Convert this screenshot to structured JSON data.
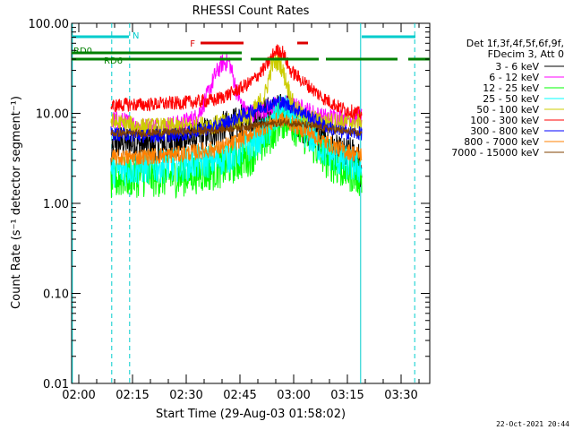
{
  "chart_data": {
    "type": "line",
    "title": "RHESSI Count Rates",
    "xlabel": "Start Time (29-Aug-03 01:58:02)",
    "ylabel": "Count Rate (s⁻¹ detector segment⁻¹)",
    "yscale": "log",
    "ylim": [
      0.01,
      100
    ],
    "xlim_minutes": [
      0,
      100
    ],
    "x_ticks": [
      {
        "t": 2,
        "label": "02:00"
      },
      {
        "t": 17,
        "label": "02:15"
      },
      {
        "t": 32,
        "label": "02:30"
      },
      {
        "t": 47,
        "label": "02:45"
      },
      {
        "t": 62,
        "label": "03:00"
      },
      {
        "t": 77,
        "label": "03:15"
      },
      {
        "t": 92,
        "label": "03:30"
      }
    ],
    "y_ticks": [
      {
        "v": 0.01,
        "label": "0.01"
      },
      {
        "v": 0.1,
        "label": "0.10"
      },
      {
        "v": 1,
        "label": "1.00"
      },
      {
        "v": 10,
        "label": "10.00"
      },
      {
        "v": 100,
        "label": "100.00"
      }
    ],
    "legend": {
      "position": "right",
      "header": [
        "Det 1f,3f,4f,5f,6f,9f,",
        "FDecim 3, Att 0"
      ]
    },
    "series": [
      {
        "name": "3 - 6 keV",
        "color": "#000000",
        "x": [
          11,
          12,
          15,
          20,
          30,
          35,
          40,
          45,
          50,
          55,
          60,
          65,
          70,
          75,
          80,
          81
        ],
        "values": [
          2.8,
          4.8,
          4.8,
          4.5,
          4.8,
          5.5,
          6.5,
          7.2,
          9,
          10,
          11,
          7,
          4.8,
          3.5,
          3.5,
          1.5
        ]
      },
      {
        "name": "6 - 12 keV",
        "color": "#ff00ff",
        "x": [
          11,
          15,
          20,
          30,
          35,
          38,
          40,
          42,
          44,
          46,
          48,
          50,
          55,
          60,
          65,
          70,
          75,
          80,
          81
        ],
        "values": [
          8.5,
          8,
          7,
          7.5,
          9,
          16,
          26,
          36,
          38,
          18,
          11,
          10,
          11.5,
          12.5,
          11,
          9,
          9,
          9,
          9
        ]
      },
      {
        "name": "12 - 25 keV",
        "color": "#00ff00",
        "x": [
          11,
          15,
          20,
          30,
          40,
          45,
          50,
          55,
          58,
          60,
          65,
          70,
          75,
          80,
          81
        ],
        "values": [
          1.8,
          2,
          2,
          2,
          2.4,
          2.8,
          3.5,
          5.5,
          8.5,
          9,
          6,
          3.5,
          2.5,
          2.1,
          1.9
        ]
      },
      {
        "name": "25 - 50 keV",
        "color": "#00ffff",
        "x": [
          11,
          15,
          20,
          30,
          40,
          45,
          50,
          55,
          58,
          60,
          65,
          70,
          75,
          80,
          81
        ],
        "values": [
          2.3,
          2.4,
          2.5,
          2.7,
          3,
          3.5,
          4.5,
          6.5,
          10,
          10.5,
          6.5,
          4,
          3,
          2.5,
          2.5
        ]
      },
      {
        "name": "50 - 100 keV",
        "color": "#cccc00",
        "x": [
          11,
          15,
          20,
          30,
          40,
          45,
          50,
          54,
          56,
          58,
          60,
          62,
          65,
          70,
          75,
          80,
          81
        ],
        "values": [
          8,
          7.5,
          7,
          7,
          7.5,
          8,
          9.5,
          16,
          35,
          38,
          22,
          12,
          9,
          8,
          8,
          8,
          8
        ]
      },
      {
        "name": "100 - 300 keV",
        "color": "#ff0000",
        "x": [
          11,
          15,
          20,
          30,
          40,
          45,
          50,
          54,
          57,
          59,
          61,
          65,
          70,
          75,
          80,
          81
        ],
        "values": [
          12,
          12.5,
          12.5,
          13,
          14,
          17,
          22,
          32,
          50,
          48,
          30,
          22,
          15,
          11.5,
          10,
          10
        ]
      },
      {
        "name": "300 - 800 keV",
        "color": "#0000ff",
        "x": [
          11,
          15,
          20,
          30,
          40,
          45,
          50,
          55,
          58,
          60,
          65,
          70,
          75,
          80,
          81
        ],
        "values": [
          6,
          5.8,
          5.6,
          5.8,
          7,
          8.5,
          10.5,
          12.5,
          13.5,
          12.5,
          10,
          7.5,
          6.2,
          6,
          6
        ]
      },
      {
        "name": "800 - 7000 keV",
        "color": "#ff8000",
        "x": [
          11,
          15,
          20,
          30,
          40,
          45,
          50,
          55,
          58,
          60,
          65,
          70,
          75,
          80,
          81
        ],
        "values": [
          3.2,
          3.2,
          3.3,
          3.5,
          4,
          4.6,
          6,
          7.5,
          8.5,
          8.2,
          6.5,
          5,
          4,
          3.5,
          3.5
        ]
      },
      {
        "name": "7000 - 15000 keV",
        "color": "#804000",
        "x": [
          11,
          20,
          40,
          60,
          80,
          81
        ],
        "values": [
          6,
          6,
          6.5,
          8,
          6,
          6
        ]
      }
    ],
    "annotations": [
      {
        "label": "N",
        "color": "#00cccc",
        "bars": [
          [
            0,
            16
          ],
          [
            81,
            96
          ]
        ],
        "level": "top"
      },
      {
        "label": "F",
        "color": "#dd0000",
        "bars": [
          [
            36,
            48
          ],
          [
            63,
            66
          ]
        ],
        "level": "upper"
      },
      {
        "label": "RD0",
        "color": "#008000",
        "bars": [
          [
            0,
            47.5
          ]
        ],
        "level": "mid"
      },
      {
        "label": "RD6",
        "color": "#008000",
        "bars": [
          [
            0,
            7
          ],
          [
            7,
            47.5
          ],
          [
            50,
            69
          ],
          [
            71,
            91
          ],
          [
            94,
            100
          ]
        ],
        "level": "low"
      }
    ],
    "vlines": [
      {
        "t": 0.2,
        "style": "solid",
        "color": "#00cccc"
      },
      {
        "t": 16.2,
        "style": "dashed",
        "color": "#00cccc"
      },
      {
        "t": 80.7,
        "style": "solid",
        "color": "#00cccc"
      },
      {
        "t": 95.8,
        "style": "dashed",
        "color": "#00cccc"
      },
      {
        "t": 11.2,
        "style": "dashed",
        "color": "#00cccc"
      }
    ]
  },
  "footer": {
    "timestamp": "22-Oct-2021 20:44"
  }
}
